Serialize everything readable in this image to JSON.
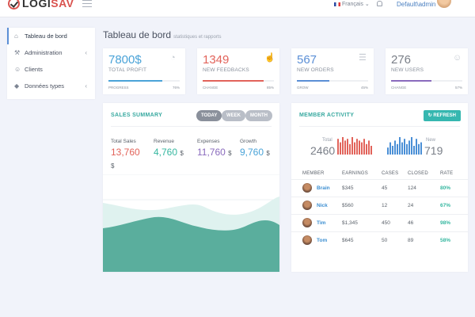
{
  "header": {
    "brand_part1": "LOGI",
    "brand_part2": "SAV",
    "language": "Français",
    "user": "Default\\admin"
  },
  "sidebar": {
    "items": [
      {
        "label": "Tableau de bord",
        "icon": "home-icon",
        "active": true
      },
      {
        "label": "Administration",
        "icon": "wrench-icon",
        "chevron": true
      },
      {
        "label": "Clients",
        "icon": "user-icon"
      },
      {
        "label": "Données types",
        "icon": "tag-icon",
        "chevron": true
      }
    ]
  },
  "page": {
    "title": "Tableau de bord",
    "subtitle": "statistiques et rapports"
  },
  "stats": [
    {
      "value": "7800$",
      "label": "TOTAL PROFIT",
      "foot_label": "PROGRESS",
      "foot_value": "76%",
      "progress": 0.76,
      "color": "#4aa3d8",
      "icon": "pie-chart-icon"
    },
    {
      "value": "1349",
      "label": "NEW FEEDBACKS",
      "foot_label": "CHANGE",
      "foot_value": "85%",
      "progress": 0.85,
      "color": "#e2635a",
      "icon": "thumbs-up-icon"
    },
    {
      "value": "567",
      "label": "NEW ORDERS",
      "foot_label": "GROW",
      "foot_value": "45%",
      "progress": 0.45,
      "color": "#5b8fd6",
      "icon": "cart-icon"
    },
    {
      "value": "276",
      "label": "NEW USERS",
      "foot_label": "CHANGE",
      "foot_value": "57%",
      "progress": 0.57,
      "color": "#8a6bbd",
      "icon": "user-icon"
    }
  ],
  "sales": {
    "title": "SALES SUMMARY",
    "ranges": [
      "TODAY",
      "WEEK",
      "MONTH"
    ],
    "active_range": "TODAY",
    "metrics": [
      {
        "label": "Total Sales",
        "value": "13,760",
        "currency": "$",
        "color": "#e2635a"
      },
      {
        "label": "Revenue",
        "value": "4,760",
        "currency": "$",
        "color": "#36b7a0"
      },
      {
        "label": "Expenses",
        "value": "11,760",
        "currency": "$",
        "color": "#8a6bbd"
      },
      {
        "label": "Growth",
        "value": "9,760",
        "currency": "$",
        "color": "#4aa3d8"
      }
    ]
  },
  "activity": {
    "title": "MEMBER ACTIVITY",
    "refresh_label": "REFRESH",
    "total_label": "Total",
    "total_value": "2460",
    "new_label": "New",
    "new_value": "719",
    "total_bars": [
      9,
      7,
      10,
      8,
      9,
      6,
      10,
      7,
      9,
      8,
      7,
      9,
      6,
      8,
      5
    ],
    "new_bars": [
      4,
      7,
      5,
      8,
      6,
      10,
      7,
      9,
      6,
      8,
      10,
      5,
      9,
      6,
      7
    ],
    "columns": [
      "MEMBER",
      "EARNINGS",
      "CASES",
      "CLOSED",
      "RATE"
    ],
    "rows": [
      {
        "member": "Brain",
        "earnings": "$345",
        "cases": "45",
        "closed": "124",
        "rate": "80%"
      },
      {
        "member": "Nick",
        "earnings": "$560",
        "cases": "12",
        "closed": "24",
        "rate": "67%"
      },
      {
        "member": "Tim",
        "earnings": "$1,345",
        "cases": "450",
        "closed": "46",
        "rate": "98%"
      },
      {
        "member": "Tom",
        "earnings": "$645",
        "cases": "50",
        "closed": "89",
        "rate": "58%"
      }
    ]
  }
}
